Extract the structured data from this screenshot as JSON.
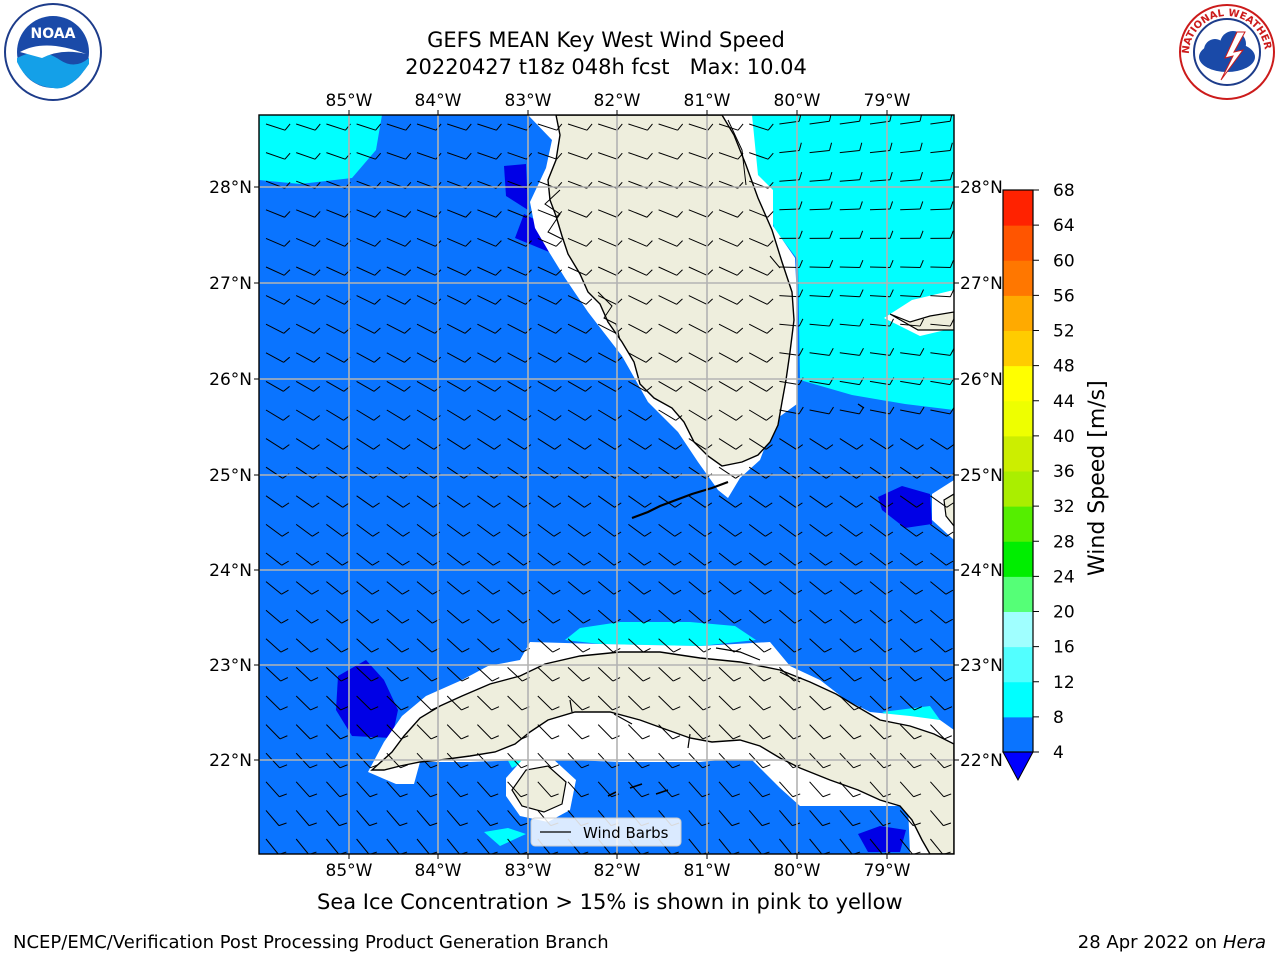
{
  "header": {
    "title_line1": "GEFS MEAN Key West Wind Speed",
    "title_line2": "20220427 t18z 048h fcst   Max: 10.04"
  },
  "logos": {
    "left_name": "NOAA",
    "left_ring_text": "NATIONAL OCEANIC AND ATMOSPHERIC ADMINISTRATION · U.S. DEPARTMENT OF COMMERCE",
    "right_ring_text": "NATIONAL WEATHER SERVICE"
  },
  "map": {
    "lon_labels": [
      "85°W",
      "84°W",
      "83°W",
      "82°W",
      "81°W",
      "80°W",
      "79°W"
    ],
    "lat_labels": [
      "28°N",
      "27°N",
      "26°N",
      "25°N",
      "24°N",
      "23°N",
      "22°N"
    ],
    "legend_label": "Wind Barbs",
    "colors": {
      "land": "#eeeedd",
      "water_4_8": "#0a74ff",
      "water_8_12": "#00ffff",
      "water_lt4": "#0000e6",
      "coast": "#000000",
      "grid": "#b3b3b3"
    }
  },
  "colorbar": {
    "label": "Wind Speed [m/s]",
    "ticks": [
      "4",
      "8",
      "12",
      "16",
      "20",
      "24",
      "28",
      "32",
      "36",
      "40",
      "44",
      "48",
      "52",
      "56",
      "60",
      "64",
      "68"
    ],
    "colors": [
      "#0a74ff",
      "#00ffff",
      "#52ffff",
      "#a0ffff",
      "#55ff77",
      "#00ee00",
      "#55ee00",
      "#aaee00",
      "#ccee00",
      "#eeff00",
      "#ffff00",
      "#ffcc00",
      "#ffaa00",
      "#ff7700",
      "#ff5500",
      "#ff2200",
      "#ff0000"
    ],
    "extend_color": "#0000ff"
  },
  "footer": {
    "subtitle": "Sea Ice Concentration > 15% is shown in pink to yellow",
    "left": "NCEP/EMC/Verification Post Processing Product Generation Branch",
    "right_prefix": "28 Apr 2022 on ",
    "right_host": "Hera"
  }
}
